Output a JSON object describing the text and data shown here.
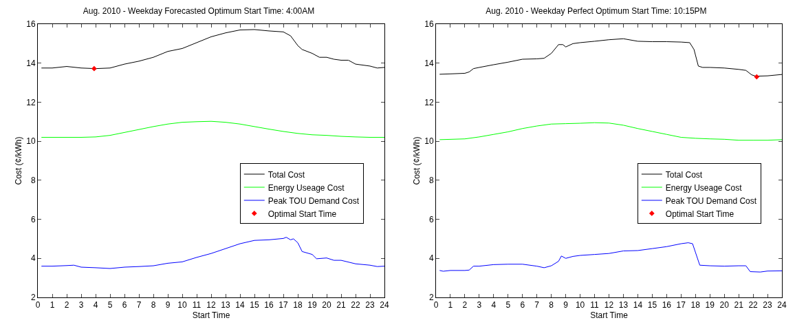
{
  "chart_data": [
    {
      "type": "line",
      "title": "Aug. 2010 - Weekday Forecasted Optimum Start Time: 4:00AM",
      "xlabel": "Start Time",
      "ylabel": "Cost (¢/kWh)",
      "xlim": [
        0,
        24
      ],
      "ylim": [
        2,
        16
      ],
      "xticks": [
        0,
        1,
        2,
        3,
        4,
        5,
        6,
        7,
        8,
        9,
        10,
        11,
        12,
        13,
        14,
        15,
        16,
        17,
        18,
        19,
        20,
        21,
        22,
        23,
        24
      ],
      "yticks": [
        2,
        4,
        6,
        8,
        10,
        12,
        14,
        16
      ],
      "grid": false,
      "legend": "right",
      "series": [
        {
          "name": "Total Cost",
          "type": "line",
          "color": "#000000",
          "x": [
            0.25,
            1,
            2,
            3,
            4,
            5,
            6,
            7,
            8,
            9,
            10,
            11,
            12,
            13,
            14,
            15,
            16,
            17,
            17.5,
            18,
            18.3,
            19,
            19.5,
            20,
            20.5,
            21,
            21.5,
            22,
            23,
            23.5,
            24
          ],
          "values": [
            13.75,
            13.75,
            13.83,
            13.75,
            13.72,
            13.75,
            13.95,
            14.1,
            14.3,
            14.6,
            14.75,
            15.05,
            15.35,
            15.55,
            15.7,
            15.72,
            15.65,
            15.6,
            15.4,
            14.9,
            14.7,
            14.5,
            14.3,
            14.3,
            14.2,
            14.15,
            14.15,
            13.95,
            13.85,
            13.75,
            13.78
          ]
        },
        {
          "name": "Energy Useage Cost",
          "type": "line",
          "color": "#00ff00",
          "x": [
            0.25,
            1,
            2,
            3,
            4,
            5,
            6,
            7,
            8,
            9,
            10,
            11,
            12,
            13,
            14,
            15,
            16,
            17,
            18,
            19,
            20,
            21,
            22,
            23,
            24
          ],
          "values": [
            10.2,
            10.2,
            10.2,
            10.2,
            10.22,
            10.3,
            10.45,
            10.6,
            10.75,
            10.88,
            10.97,
            11.0,
            11.02,
            10.97,
            10.88,
            10.75,
            10.62,
            10.5,
            10.4,
            10.33,
            10.3,
            10.25,
            10.22,
            10.2,
            10.2
          ]
        },
        {
          "name": "Peak TOU Demand Cost",
          "type": "line",
          "color": "#0000ff",
          "x": [
            0.25,
            1,
            2,
            2.5,
            3,
            4,
            5,
            6,
            7,
            8,
            9,
            10,
            11,
            12,
            13,
            14,
            15,
            16,
            17,
            17.2,
            17.5,
            17.7,
            18,
            18.3,
            19,
            19.3,
            20,
            20.5,
            21,
            22,
            23,
            23.5,
            24
          ],
          "values": [
            3.6,
            3.6,
            3.63,
            3.65,
            3.55,
            3.52,
            3.48,
            3.55,
            3.58,
            3.62,
            3.75,
            3.82,
            4.05,
            4.25,
            4.5,
            4.75,
            4.92,
            4.95,
            5.02,
            5.08,
            4.95,
            5.0,
            4.8,
            4.35,
            4.2,
            3.98,
            4.02,
            3.9,
            3.9,
            3.72,
            3.65,
            3.58,
            3.6
          ]
        },
        {
          "name": "Optimal Start Time",
          "type": "scatter",
          "marker": "diamond",
          "color": "#ff0000",
          "x": [
            3.9
          ],
          "values": [
            13.72
          ]
        }
      ]
    },
    {
      "type": "line",
      "title": "Aug. 2010 - Weekday Perfect Optimum Start Time: 10:15PM",
      "xlabel": "Start Time",
      "ylabel": "Cost (¢/kWh)",
      "xlim": [
        0,
        24
      ],
      "ylim": [
        2,
        16
      ],
      "xticks": [
        0,
        1,
        2,
        3,
        4,
        5,
        6,
        7,
        8,
        9,
        10,
        11,
        12,
        13,
        14,
        15,
        16,
        17,
        18,
        19,
        20,
        21,
        22,
        23,
        24
      ],
      "yticks": [
        2,
        4,
        6,
        8,
        10,
        12,
        14,
        16
      ],
      "grid": false,
      "legend": "right",
      "series": [
        {
          "name": "Total Cost",
          "type": "line",
          "color": "#000000",
          "x": [
            0.25,
            1,
            2,
            2.3,
            2.6,
            3,
            4,
            5,
            6,
            7,
            7.5,
            8,
            8.5,
            8.8,
            9,
            9.5,
            10,
            11,
            12,
            13,
            14,
            15,
            16,
            17,
            17.6,
            17.9,
            18.2,
            18.5,
            19,
            20,
            21,
            21.5,
            21.9,
            22.2,
            23,
            24
          ],
          "values": [
            13.43,
            13.45,
            13.48,
            13.55,
            13.72,
            13.78,
            13.92,
            14.05,
            14.2,
            14.22,
            14.25,
            14.5,
            14.95,
            14.95,
            14.83,
            15.0,
            15.05,
            15.12,
            15.2,
            15.25,
            15.12,
            15.1,
            15.1,
            15.08,
            15.05,
            14.7,
            13.85,
            13.78,
            13.78,
            13.75,
            13.68,
            13.63,
            13.4,
            13.33,
            13.35,
            13.42
          ]
        },
        {
          "name": "Energy Useage Cost",
          "type": "line",
          "color": "#00ff00",
          "x": [
            0.25,
            2,
            3,
            4,
            5,
            6,
            7,
            8,
            9,
            10,
            11,
            12,
            13,
            14,
            15,
            16,
            17,
            18,
            19,
            20,
            21,
            22,
            23,
            24
          ],
          "values": [
            10.08,
            10.12,
            10.22,
            10.35,
            10.48,
            10.65,
            10.78,
            10.88,
            10.9,
            10.92,
            10.95,
            10.93,
            10.82,
            10.65,
            10.5,
            10.35,
            10.2,
            10.15,
            10.12,
            10.1,
            10.05,
            10.05,
            10.05,
            10.08
          ]
        },
        {
          "name": "Peak TOU Demand Cost",
          "type": "line",
          "color": "#0000ff",
          "x": [
            0.25,
            0.5,
            1,
            2,
            2.3,
            2.6,
            3,
            4,
            5,
            6,
            7,
            7.5,
            8,
            8.5,
            8.7,
            9,
            9.5,
            10,
            11,
            12,
            13,
            14,
            15,
            16,
            17,
            17.5,
            17.8,
            18.3,
            19,
            20,
            21,
            21.5,
            21.8,
            22.5,
            23,
            24
          ],
          "values": [
            3.38,
            3.34,
            3.38,
            3.38,
            3.4,
            3.6,
            3.6,
            3.68,
            3.7,
            3.7,
            3.6,
            3.52,
            3.62,
            3.85,
            4.12,
            4.0,
            4.1,
            4.15,
            4.2,
            4.25,
            4.38,
            4.4,
            4.5,
            4.6,
            4.75,
            4.8,
            4.75,
            3.65,
            3.62,
            3.6,
            3.62,
            3.62,
            3.32,
            3.3,
            3.35,
            3.36
          ]
        },
        {
          "name": "Optimal Start Time",
          "type": "scatter",
          "marker": "diamond",
          "color": "#ff0000",
          "x": [
            22.25
          ],
          "values": [
            13.3
          ]
        }
      ]
    }
  ]
}
